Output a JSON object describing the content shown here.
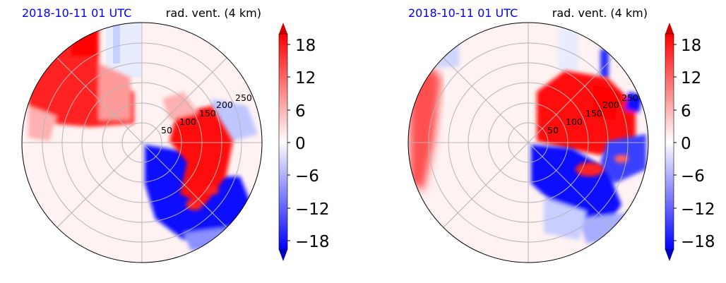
{
  "chart_data": [
    {
      "type": "heatmap",
      "projection": "polar",
      "title_left": "2018-10-11 01 UTC",
      "title_right": "rad. vent. (4 km)",
      "range_labels": [
        "50",
        "100",
        "150",
        "200",
        "250"
      ],
      "colorbar": {
        "ticks": [
          "18",
          "12",
          "6",
          "0",
          "−6",
          "−12",
          "−18"
        ],
        "tick_values": [
          18,
          12,
          6,
          0,
          -6,
          -12,
          -18
        ],
        "vmin": -21,
        "vmax": 21,
        "extend": "both",
        "cmap": "bwr",
        "colors": {
          "low": "#0000ff",
          "mid": "#ffffff",
          "high": "#ff0000"
        }
      }
    },
    {
      "type": "heatmap",
      "projection": "polar",
      "title_left": "2018-10-11 01 UTC",
      "title_right": "rad. vent. (4 km)",
      "range_labels": [
        "50",
        "100",
        "150",
        "200",
        "250"
      ],
      "colorbar": {
        "ticks": [
          "18",
          "12",
          "6",
          "0",
          "−6",
          "−12",
          "−18"
        ],
        "tick_values": [
          18,
          12,
          6,
          0,
          -6,
          -12,
          -18
        ],
        "vmin": -21,
        "vmax": 21,
        "extend": "both",
        "cmap": "bwr",
        "colors": {
          "low": "#0000ff",
          "mid": "#ffffff",
          "high": "#ff0000"
        }
      }
    }
  ]
}
